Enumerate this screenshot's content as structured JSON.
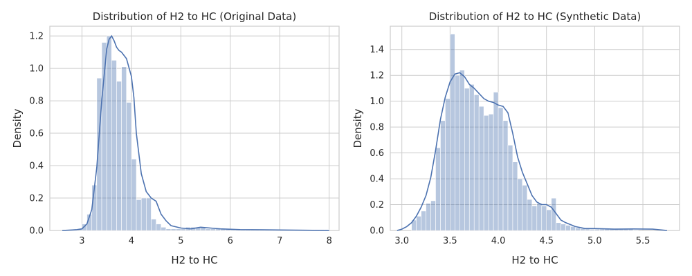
{
  "chart_data": [
    {
      "type": "histogram",
      "title": "Distribution of H2 to HC (Original Data)",
      "xlabel": "H2 to HC",
      "ylabel": "Density",
      "xlim": [
        2.35,
        8.2
      ],
      "ylim": [
        0,
        1.26
      ],
      "xticks": [
        3,
        4,
        5,
        6,
        7,
        8
      ],
      "xtick_labels": [
        "3",
        "4",
        "5",
        "6",
        "7",
        "8"
      ],
      "yticks": [
        0,
        0.2,
        0.4,
        0.6,
        0.8,
        1.0,
        1.2
      ],
      "ytick_labels": [
        "0.0",
        "0.2",
        "0.4",
        "0.6",
        "0.8",
        "1.0",
        "1.2"
      ],
      "grid": true,
      "bin_width": 0.1,
      "bin_start": 2.6,
      "values": [
        0.002,
        0.003,
        0.005,
        0.01,
        0.04,
        0.1,
        0.28,
        0.94,
        1.16,
        1.2,
        1.05,
        0.92,
        1.01,
        0.79,
        0.44,
        0.19,
        0.2,
        0.2,
        0.07,
        0.04,
        0.02,
        0.01,
        0.01,
        0.01,
        0.01,
        0.02,
        0.02,
        0.02,
        0.02,
        0.01,
        0.01,
        0.01,
        0.01,
        0.01,
        0.005,
        0.005,
        0.005,
        0.005,
        0.005,
        0.005,
        0.005,
        0.005,
        0.005,
        0.005,
        0.005,
        0.005,
        0.005,
        0.005,
        0.005,
        0.005,
        0.005,
        0.005,
        0.005,
        0.005
      ],
      "kde": {
        "x": [
          2.6,
          2.8,
          2.9,
          3.0,
          3.1,
          3.2,
          3.3,
          3.4,
          3.5,
          3.55,
          3.6,
          3.65,
          3.7,
          3.75,
          3.8,
          3.9,
          4.0,
          4.05,
          4.1,
          4.2,
          4.3,
          4.4,
          4.5,
          4.6,
          4.7,
          4.8,
          5.0,
          5.2,
          5.4,
          5.6,
          5.8,
          6.2,
          7.0,
          8.0
        ],
        "y": [
          0.0,
          0.003,
          0.005,
          0.01,
          0.04,
          0.13,
          0.39,
          0.8,
          1.12,
          1.18,
          1.2,
          1.17,
          1.13,
          1.11,
          1.1,
          1.06,
          0.95,
          0.82,
          0.6,
          0.35,
          0.24,
          0.2,
          0.18,
          0.1,
          0.06,
          0.03,
          0.015,
          0.01,
          0.02,
          0.015,
          0.01,
          0.005,
          0.003,
          0.0
        ]
      }
    },
    {
      "type": "histogram",
      "title": "Distribution of H2 to HC (Synthetic Data)",
      "xlabel": "H2 to HC",
      "ylabel": "Density",
      "xlim": [
        2.88,
        5.88
      ],
      "ylim": [
        0,
        1.58
      ],
      "xticks": [
        3.0,
        3.5,
        4.0,
        4.5,
        5.0,
        5.5
      ],
      "xtick_labels": [
        "3.0",
        "3.5",
        "4.0",
        "4.5",
        "5.0",
        "5.5"
      ],
      "yticks": [
        0,
        0.2,
        0.4,
        0.6,
        0.8,
        1.0,
        1.2,
        1.4
      ],
      "ytick_labels": [
        "0.0",
        "0.2",
        "0.4",
        "0.6",
        "0.8",
        "1.0",
        "1.2",
        "1.4"
      ],
      "grid": true,
      "bin_width": 0.05,
      "bin_start": 3.1,
      "values": [
        0.08,
        0.11,
        0.15,
        0.21,
        0.23,
        0.64,
        0.85,
        1.02,
        1.52,
        1.2,
        1.24,
        1.1,
        1.13,
        1.05,
        0.96,
        0.89,
        0.9,
        1.07,
        0.95,
        0.85,
        0.66,
        0.53,
        0.4,
        0.35,
        0.24,
        0.19,
        0.21,
        0.19,
        0.16,
        0.25,
        0.06,
        0.05,
        0.04,
        0.03,
        0.02,
        0.015,
        0.015,
        0.01,
        0.01,
        0.01,
        0.01,
        0.01,
        0.01,
        0.01,
        0.01,
        0.01,
        0.005
      ],
      "kde": {
        "x": [
          2.95,
          3.0,
          3.05,
          3.1,
          3.15,
          3.2,
          3.25,
          3.3,
          3.35,
          3.4,
          3.45,
          3.5,
          3.55,
          3.6,
          3.65,
          3.7,
          3.75,
          3.8,
          3.85,
          3.9,
          3.95,
          4.0,
          4.05,
          4.1,
          4.15,
          4.2,
          4.25,
          4.3,
          4.35,
          4.4,
          4.45,
          4.5,
          4.55,
          4.6,
          4.65,
          4.7,
          4.8,
          4.9,
          5.0,
          5.2,
          5.4,
          5.6,
          5.75
        ],
        "y": [
          0.0,
          0.01,
          0.03,
          0.06,
          0.11,
          0.18,
          0.27,
          0.41,
          0.62,
          0.86,
          1.03,
          1.15,
          1.21,
          1.22,
          1.19,
          1.13,
          1.1,
          1.06,
          1.02,
          1.0,
          0.99,
          0.97,
          0.96,
          0.91,
          0.75,
          0.57,
          0.45,
          0.36,
          0.27,
          0.22,
          0.2,
          0.2,
          0.18,
          0.13,
          0.08,
          0.06,
          0.03,
          0.015,
          0.015,
          0.01,
          0.012,
          0.01,
          0.0
        ]
      }
    }
  ]
}
